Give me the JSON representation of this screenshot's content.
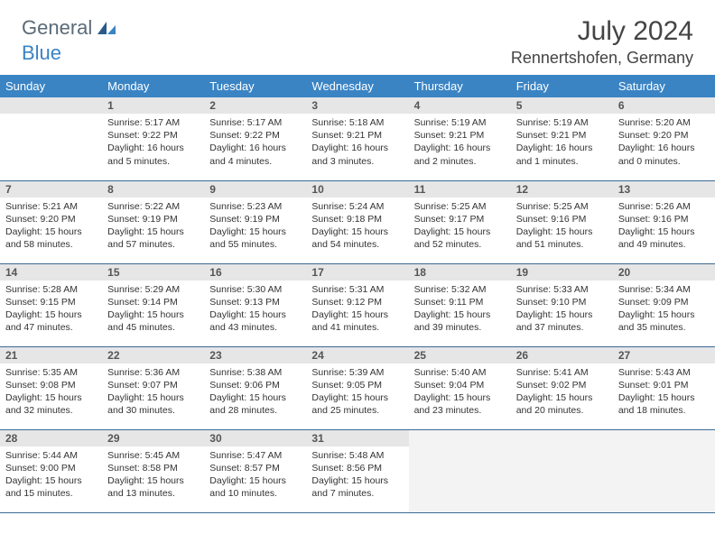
{
  "brand": {
    "part1": "General",
    "part2": "Blue"
  },
  "title": "July 2024",
  "location": "Rennertshofen, Germany",
  "colors": {
    "header_bg": "#3a84c4",
    "daynum_bg": "#e6e6e6",
    "row_border": "#3a6a94",
    "logo_gray": "#5a6a78",
    "logo_blue": "#3a84c4"
  },
  "weekdays": [
    "Sunday",
    "Monday",
    "Tuesday",
    "Wednesday",
    "Thursday",
    "Friday",
    "Saturday"
  ],
  "first_weekday_index": 1,
  "days": [
    {
      "n": 1,
      "sunrise": "5:17 AM",
      "sunset": "9:22 PM",
      "dh": 16,
      "dm": 5
    },
    {
      "n": 2,
      "sunrise": "5:17 AM",
      "sunset": "9:22 PM",
      "dh": 16,
      "dm": 4
    },
    {
      "n": 3,
      "sunrise": "5:18 AM",
      "sunset": "9:21 PM",
      "dh": 16,
      "dm": 3
    },
    {
      "n": 4,
      "sunrise": "5:19 AM",
      "sunset": "9:21 PM",
      "dh": 16,
      "dm": 2
    },
    {
      "n": 5,
      "sunrise": "5:19 AM",
      "sunset": "9:21 PM",
      "dh": 16,
      "dm": 1
    },
    {
      "n": 6,
      "sunrise": "5:20 AM",
      "sunset": "9:20 PM",
      "dh": 16,
      "dm": 0
    },
    {
      "n": 7,
      "sunrise": "5:21 AM",
      "sunset": "9:20 PM",
      "dh": 15,
      "dm": 58
    },
    {
      "n": 8,
      "sunrise": "5:22 AM",
      "sunset": "9:19 PM",
      "dh": 15,
      "dm": 57
    },
    {
      "n": 9,
      "sunrise": "5:23 AM",
      "sunset": "9:19 PM",
      "dh": 15,
      "dm": 55
    },
    {
      "n": 10,
      "sunrise": "5:24 AM",
      "sunset": "9:18 PM",
      "dh": 15,
      "dm": 54
    },
    {
      "n": 11,
      "sunrise": "5:25 AM",
      "sunset": "9:17 PM",
      "dh": 15,
      "dm": 52
    },
    {
      "n": 12,
      "sunrise": "5:25 AM",
      "sunset": "9:16 PM",
      "dh": 15,
      "dm": 51
    },
    {
      "n": 13,
      "sunrise": "5:26 AM",
      "sunset": "9:16 PM",
      "dh": 15,
      "dm": 49
    },
    {
      "n": 14,
      "sunrise": "5:28 AM",
      "sunset": "9:15 PM",
      "dh": 15,
      "dm": 47
    },
    {
      "n": 15,
      "sunrise": "5:29 AM",
      "sunset": "9:14 PM",
      "dh": 15,
      "dm": 45
    },
    {
      "n": 16,
      "sunrise": "5:30 AM",
      "sunset": "9:13 PM",
      "dh": 15,
      "dm": 43
    },
    {
      "n": 17,
      "sunrise": "5:31 AM",
      "sunset": "9:12 PM",
      "dh": 15,
      "dm": 41
    },
    {
      "n": 18,
      "sunrise": "5:32 AM",
      "sunset": "9:11 PM",
      "dh": 15,
      "dm": 39
    },
    {
      "n": 19,
      "sunrise": "5:33 AM",
      "sunset": "9:10 PM",
      "dh": 15,
      "dm": 37
    },
    {
      "n": 20,
      "sunrise": "5:34 AM",
      "sunset": "9:09 PM",
      "dh": 15,
      "dm": 35
    },
    {
      "n": 21,
      "sunrise": "5:35 AM",
      "sunset": "9:08 PM",
      "dh": 15,
      "dm": 32
    },
    {
      "n": 22,
      "sunrise": "5:36 AM",
      "sunset": "9:07 PM",
      "dh": 15,
      "dm": 30
    },
    {
      "n": 23,
      "sunrise": "5:38 AM",
      "sunset": "9:06 PM",
      "dh": 15,
      "dm": 28
    },
    {
      "n": 24,
      "sunrise": "5:39 AM",
      "sunset": "9:05 PM",
      "dh": 15,
      "dm": 25
    },
    {
      "n": 25,
      "sunrise": "5:40 AM",
      "sunset": "9:04 PM",
      "dh": 15,
      "dm": 23
    },
    {
      "n": 26,
      "sunrise": "5:41 AM",
      "sunset": "9:02 PM",
      "dh": 15,
      "dm": 20
    },
    {
      "n": 27,
      "sunrise": "5:43 AM",
      "sunset": "9:01 PM",
      "dh": 15,
      "dm": 18
    },
    {
      "n": 28,
      "sunrise": "5:44 AM",
      "sunset": "9:00 PM",
      "dh": 15,
      "dm": 15
    },
    {
      "n": 29,
      "sunrise": "5:45 AM",
      "sunset": "8:58 PM",
      "dh": 15,
      "dm": 13
    },
    {
      "n": 30,
      "sunrise": "5:47 AM",
      "sunset": "8:57 PM",
      "dh": 15,
      "dm": 10
    },
    {
      "n": 31,
      "sunrise": "5:48 AM",
      "sunset": "8:56 PM",
      "dh": 15,
      "dm": 7
    }
  ],
  "labels": {
    "sunrise": "Sunrise:",
    "sunset": "Sunset:",
    "daylight": "Daylight:",
    "hours": "hours",
    "and": "and",
    "minutes": "minutes."
  }
}
